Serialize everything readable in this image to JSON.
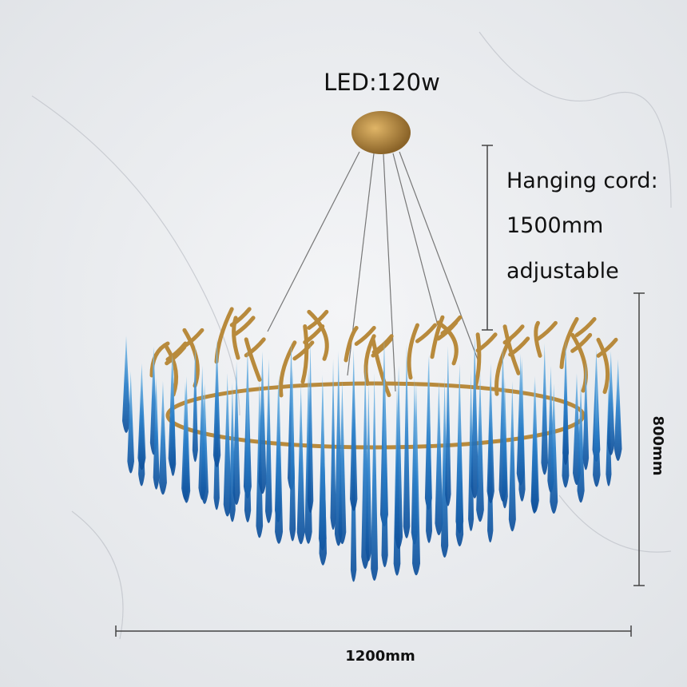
{
  "annotations": {
    "power": "LED:120w",
    "cord_label": "Hanging cord:",
    "cord_length": "1500mm",
    "cord_note": "adjustable",
    "height": "800mm",
    "width": "1200mm"
  }
}
